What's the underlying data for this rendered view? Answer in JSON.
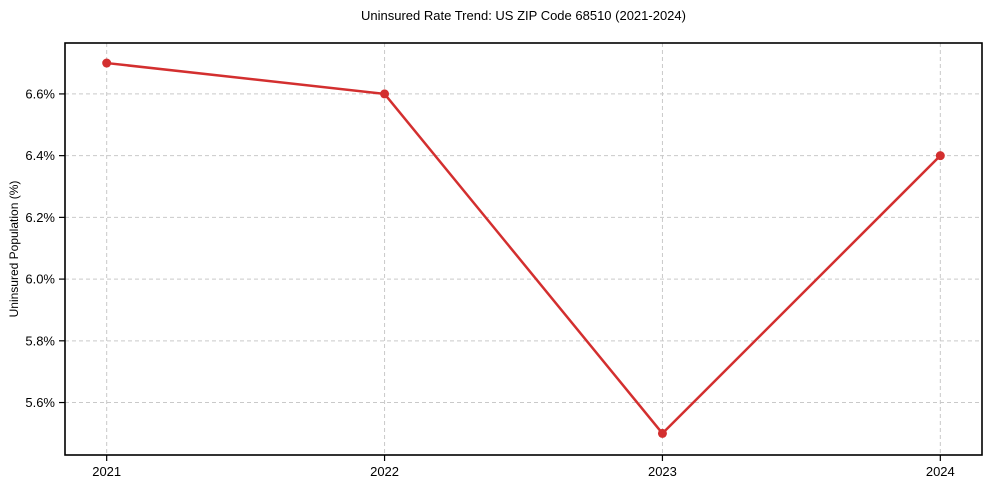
{
  "chart_data": {
    "type": "line",
    "title": "Uninsured Rate Trend: US ZIP Code 68510 (2021-2024)",
    "xlabel": "",
    "ylabel": "Uninsured Population (%)",
    "x": [
      2021,
      2022,
      2023,
      2024
    ],
    "values": [
      6.7,
      6.6,
      5.5,
      6.4
    ],
    "xtick_labels": [
      "2021",
      "2022",
      "2023",
      "2024"
    ],
    "ytick_values": [
      5.6,
      5.8,
      6.0,
      6.2,
      6.4,
      6.6
    ],
    "ytick_labels": [
      "5.6%",
      "5.8%",
      "6.0%",
      "6.2%",
      "6.4%",
      "6.6%"
    ],
    "xlim": [
      2020.85,
      2024.15
    ],
    "ylim": [
      5.43,
      6.765
    ],
    "grid": true,
    "grid_style": "dashed",
    "legend": false,
    "line_color": "#d32f2f",
    "marker_color": "#d32f2f",
    "grid_color": "#c9c9c9",
    "axis_color": "#000000",
    "background": "#ffffff"
  }
}
